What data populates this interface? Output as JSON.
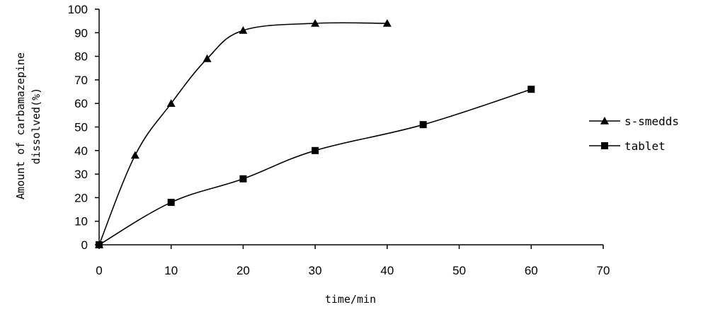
{
  "chart_data": {
    "type": "line",
    "xlabel": "time/min",
    "ylabel_line1": "Amount of carbamazepine",
    "ylabel_line2": "dissolved(%)",
    "xlim": [
      0,
      70
    ],
    "ylim": [
      0,
      100
    ],
    "xticks": [
      0,
      10,
      20,
      30,
      40,
      50,
      60,
      70
    ],
    "yticks": [
      0,
      10,
      20,
      30,
      40,
      50,
      60,
      70,
      80,
      90,
      100
    ],
    "grid": false,
    "legend_position": "right",
    "series": [
      {
        "name": "s-smedds",
        "marker": "triangle",
        "color": "#000000",
        "points": [
          [
            0,
            0
          ],
          [
            5,
            38
          ],
          [
            10,
            60
          ],
          [
            15,
            79
          ],
          [
            20,
            91
          ],
          [
            30,
            94
          ],
          [
            40,
            94
          ]
        ]
      },
      {
        "name": "tablet",
        "marker": "square",
        "color": "#000000",
        "points": [
          [
            0,
            0
          ],
          [
            10,
            18
          ],
          [
            20,
            28
          ],
          [
            30,
            40
          ],
          [
            45,
            51
          ],
          [
            60,
            66
          ]
        ]
      }
    ]
  }
}
